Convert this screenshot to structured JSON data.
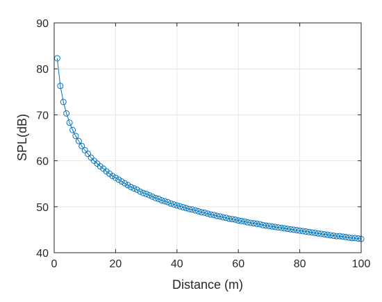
{
  "chart_data": {
    "type": "line",
    "xlabel": "Distance (m)",
    "ylabel": "SPL(dB)",
    "xlim": [
      0,
      100
    ],
    "ylim": [
      40,
      90
    ],
    "xticks": [
      0,
      20,
      40,
      60,
      80,
      100
    ],
    "yticks": [
      40,
      50,
      60,
      70,
      80,
      90
    ],
    "grid": true,
    "marker": "circle",
    "colors": {
      "series": "#0072BD",
      "grid": "#e6e6e6",
      "axis": "#262626"
    },
    "series": [
      {
        "x": [
          1,
          2,
          3,
          4,
          5,
          6,
          7,
          8,
          9,
          10,
          11,
          12,
          13,
          14,
          15,
          16,
          17,
          18,
          19,
          20,
          21,
          22,
          23,
          24,
          25,
          26,
          27,
          28,
          29,
          30,
          31,
          32,
          33,
          34,
          35,
          36,
          37,
          38,
          39,
          40,
          41,
          42,
          43,
          44,
          45,
          46,
          47,
          48,
          49,
          50,
          51,
          52,
          53,
          54,
          55,
          56,
          57,
          58,
          59,
          60,
          61,
          62,
          63,
          64,
          65,
          66,
          67,
          68,
          69,
          70,
          71,
          72,
          73,
          74,
          75,
          76,
          77,
          78,
          79,
          80,
          81,
          82,
          83,
          84,
          85,
          86,
          87,
          88,
          89,
          90,
          91,
          92,
          93,
          94,
          95,
          96,
          97,
          98,
          99,
          100
        ],
        "y": [
          82.3,
          76.3,
          72.8,
          70.3,
          68.3,
          66.7,
          65.4,
          64.3,
          63.2,
          62.3,
          61.5,
          60.7,
          60.0,
          59.4,
          58.8,
          58.3,
          57.7,
          57.2,
          56.7,
          56.3,
          55.9,
          55.5,
          55.1,
          54.7,
          54.3,
          54.0,
          53.7,
          53.3,
          53.0,
          52.8,
          52.5,
          52.2,
          51.9,
          51.7,
          51.4,
          51.2,
          51.0,
          50.7,
          50.5,
          50.3,
          50.1,
          49.9,
          49.7,
          49.5,
          49.4,
          49.2,
          49.0,
          48.8,
          48.7,
          48.5,
          48.3,
          48.2,
          48.0,
          47.9,
          47.7,
          47.6,
          47.4,
          47.3,
          47.2,
          47.0,
          46.9,
          46.8,
          46.6,
          46.5,
          46.4,
          46.3,
          46.2,
          46.0,
          45.9,
          45.8,
          45.7,
          45.6,
          45.5,
          45.4,
          45.3,
          45.2,
          45.1,
          45.0,
          44.9,
          44.8,
          44.7,
          44.6,
          44.5,
          44.4,
          44.3,
          44.2,
          44.1,
          44.0,
          43.9,
          43.8,
          43.7,
          43.6,
          43.6,
          43.5,
          43.4,
          43.3,
          43.2,
          43.2,
          43.1,
          43.0
        ]
      }
    ]
  }
}
